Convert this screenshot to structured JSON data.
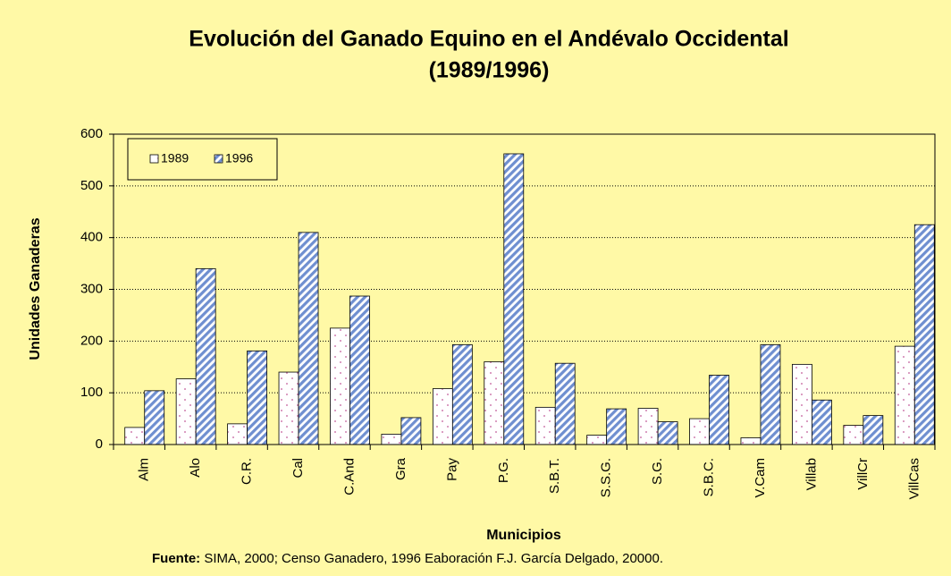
{
  "chart_data": {
    "type": "bar",
    "title": "Evolución del Ganado Equino en el Andévalo Occidental",
    "subtitle": "(1989/1996)",
    "y_label": "Unidades Ganaderas",
    "x_label": "Municipios",
    "source_label": "Fuente:",
    "source": "SIMA, 2000; Censo Ganadero, 1996 Eaboración F.J. García Delgado, 20000.",
    "categories": [
      "Alm",
      "Alo",
      "C.R.",
      "Cal",
      "C.And",
      "Gra",
      "Pay",
      "P.G.",
      "S.B.T.",
      "S.S.G.",
      "S.G.",
      "S.B.C.",
      "V.Cam",
      "Villab",
      "VillCr",
      "VillCas"
    ],
    "series": [
      {
        "name": "1989",
        "color": "#ffffff",
        "values": [
          33,
          127,
          40,
          140,
          225,
          20,
          108,
          160,
          72,
          18,
          70,
          50,
          13,
          155,
          37,
          190
        ]
      },
      {
        "name": "1996",
        "color": "#6f8fd0",
        "values": [
          104,
          340,
          181,
          410,
          287,
          52,
          193,
          562,
          157,
          69,
          44,
          134,
          193,
          86,
          56,
          425
        ]
      }
    ],
    "ylim": [
      0,
      600
    ],
    "yticks": [
      0,
      100,
      200,
      300,
      400,
      500,
      600
    ],
    "grid": true,
    "legend": "top-left"
  }
}
